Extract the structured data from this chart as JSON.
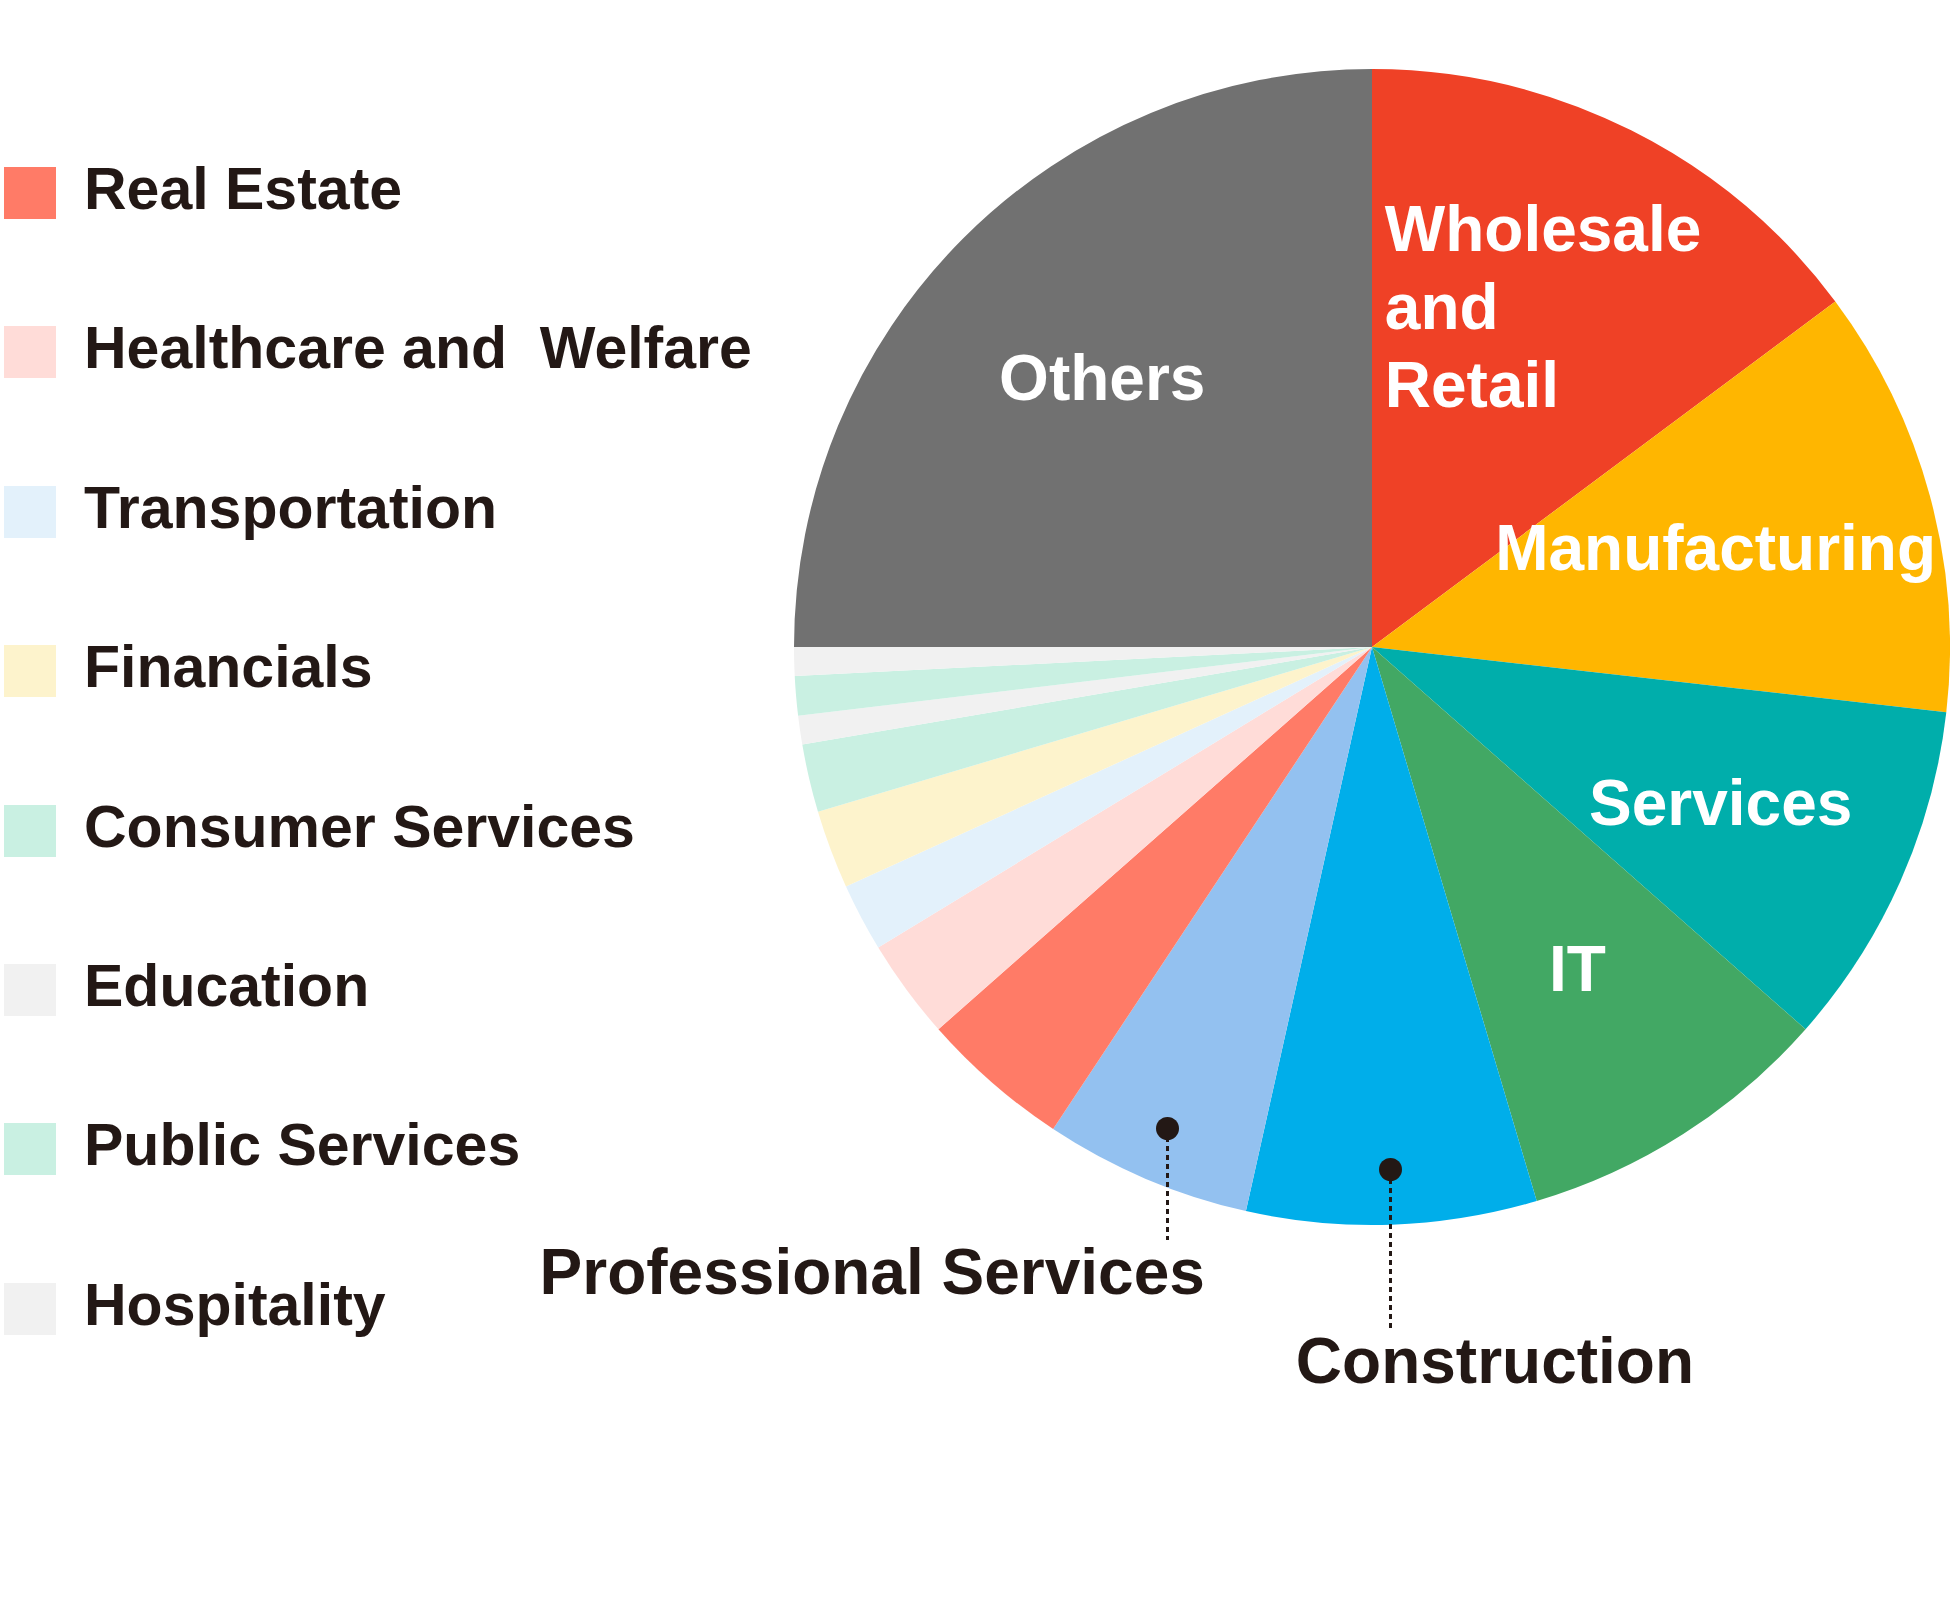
{
  "chart_data": {
    "type": "pie",
    "categories": [
      "Wholesale and Retail",
      "Manufacturing",
      "Services",
      "IT",
      "Construction",
      "Professional Services",
      "Real Estate",
      "Healthcare and  Welfare",
      "Transportation",
      "Financials",
      "Consumer Services",
      "Education",
      "Public Services",
      "Hospitality",
      "Others"
    ],
    "values": [
      14.8,
      12.0,
      9.7,
      8.9,
      8.1,
      5.8,
      4.2,
      2.8,
      1.9,
      2.2,
      1.9,
      0.8,
      1.1,
      0.8,
      25
    ],
    "colors": [
      "#ef4126",
      "#ffb600",
      "#00aeab",
      "#42a864",
      "#00aeea",
      "#93c1f0",
      "#ff7b67",
      "#ffdcd8",
      "#e3f1fb",
      "#fdf3cc",
      "#c9f0e2",
      "#f1f1f1",
      "#c9f0e2",
      "#f1f1f1",
      "#717171"
    ],
    "legend": "left"
  }
}
